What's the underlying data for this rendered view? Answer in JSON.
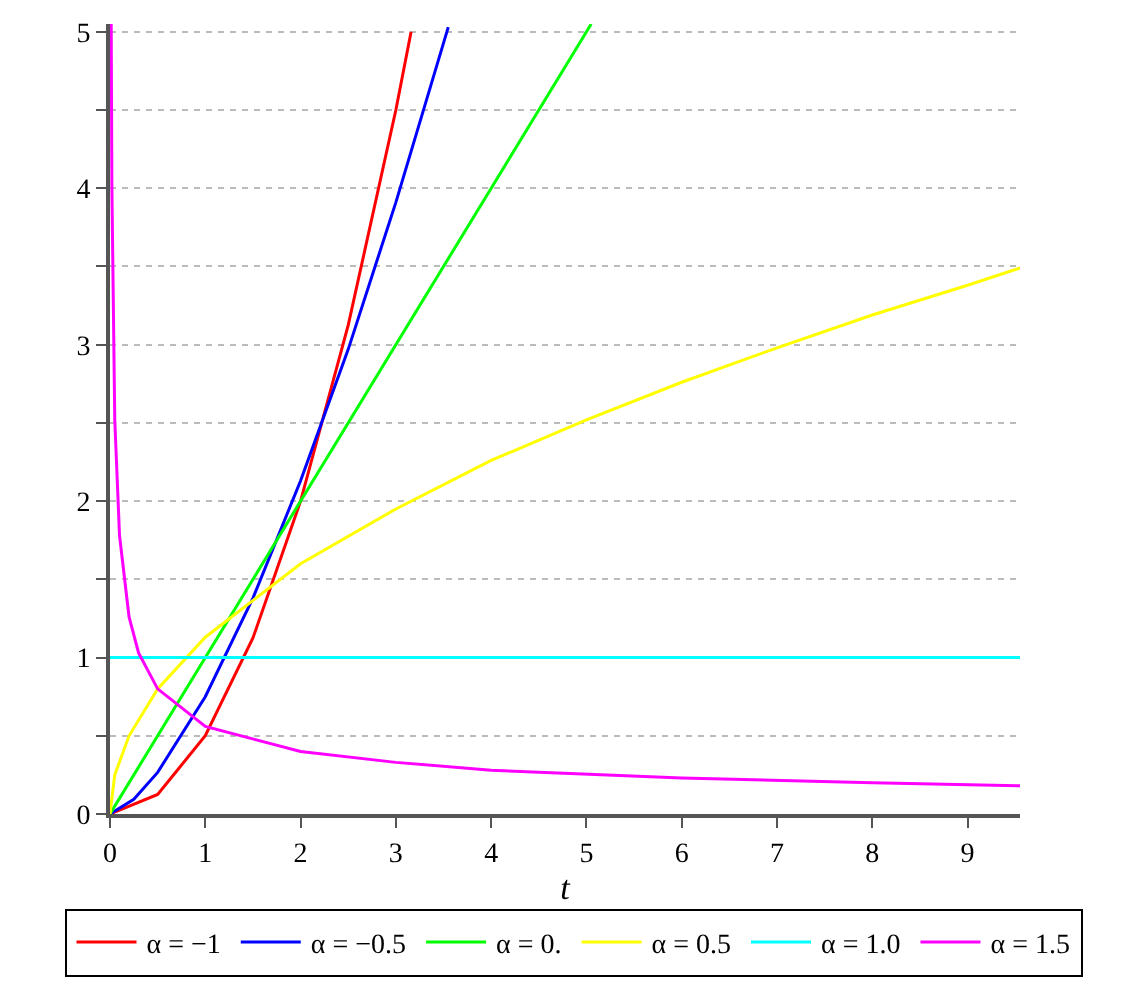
{
  "chart_data": {
    "type": "line",
    "xlabel": "t",
    "xlim": [
      0,
      9.55
    ],
    "xticks": [
      0,
      1,
      2,
      3,
      4,
      5,
      6,
      7,
      8,
      9
    ],
    "ylim": [
      0,
      5.05
    ],
    "yticks": [
      0,
      {
        "value": 0.5,
        "label": null
      },
      1,
      {
        "value": 1.5,
        "label": null
      },
      2,
      {
        "value": 2.5,
        "label": null
      },
      3,
      {
        "value": 3.5,
        "label": null
      },
      4,
      {
        "value": 4.5,
        "label": null
      },
      5
    ],
    "grid": "y",
    "legend": "bottom",
    "line_style": "solid",
    "marker": "none",
    "series": [
      {
        "name": "α = −1",
        "color": "#ff0000",
        "x": [
          0,
          0.5,
          1,
          1.5,
          2,
          2.5,
          3,
          3.16
        ],
        "values": [
          0,
          0.125,
          0.5,
          1.125,
          2,
          3.125,
          4.5,
          5.0
        ]
      },
      {
        "name": "α = −0.5",
        "color": "#0000ff",
        "x": [
          0,
          0.25,
          0.5,
          1,
          1.5,
          2,
          2.5,
          3,
          3.55
        ],
        "values": [
          0,
          0.094,
          0.266,
          0.75,
          1.38,
          2.13,
          2.97,
          3.91,
          5.03
        ]
      },
      {
        "name": "α = 0.",
        "color": "#00ff00",
        "x": [
          0,
          5.05
        ],
        "values": [
          0,
          5.05
        ]
      },
      {
        "name": "α = 0.5",
        "color": "#ffff00",
        "x": [
          0,
          0.05,
          0.2,
          0.5,
          1,
          2,
          3,
          4,
          5,
          6,
          7,
          8,
          9,
          9.55
        ],
        "values": [
          0,
          0.25,
          0.5,
          0.8,
          1.13,
          1.6,
          1.95,
          2.26,
          2.52,
          2.76,
          2.98,
          3.19,
          3.38,
          3.49
        ]
      },
      {
        "name": "α = 1.0",
        "color": "#00ffff",
        "x": [
          0,
          9.55
        ],
        "values": [
          1,
          1
        ]
      },
      {
        "name": "α = 1.5",
        "color": "#ff00ff",
        "x": [
          0.0125,
          0.02,
          0.05,
          0.1,
          0.2,
          0.3,
          0.5,
          1,
          2,
          3,
          4,
          6,
          8,
          9.55
        ],
        "values": [
          5.05,
          4.0,
          2.52,
          1.78,
          1.26,
          1.03,
          0.8,
          0.56,
          0.4,
          0.33,
          0.28,
          0.23,
          0.2,
          0.18
        ]
      }
    ]
  }
}
